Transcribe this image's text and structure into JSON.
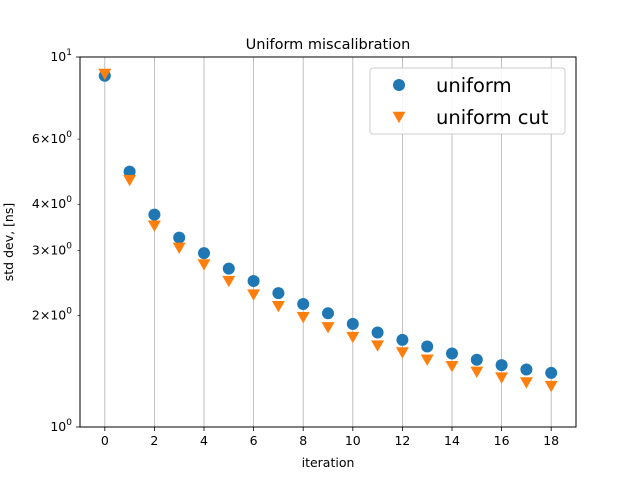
{
  "chart_data": {
    "type": "scatter",
    "title": "Uniform miscalibration",
    "xlabel": "iteration",
    "ylabel": "std dev, [ns]",
    "xlim": [
      -1,
      19
    ],
    "ylim": [
      1,
      10
    ],
    "yscale": "log",
    "grid": "vertical",
    "legend_position": "top-right",
    "x_ticks": [
      "0",
      "2",
      "4",
      "6",
      "8",
      "10",
      "12",
      "14",
      "16",
      "18"
    ],
    "y_major_ticks": [
      {
        "value": 1,
        "base": "10",
        "exp": "0"
      },
      {
        "value": 10,
        "base": "10",
        "exp": "1"
      }
    ],
    "y_minor_ticks": [
      {
        "value": 2,
        "coef": "2",
        "base": "10",
        "exp": "0"
      },
      {
        "value": 3,
        "coef": "3",
        "base": "10",
        "exp": "0"
      },
      {
        "value": 4,
        "coef": "4",
        "base": "10",
        "exp": "0"
      },
      {
        "value": 6,
        "coef": "6",
        "base": "10",
        "exp": "0"
      }
    ],
    "series": [
      {
        "name": "uniform",
        "marker": "circle",
        "color": "#1f77b4",
        "x": [
          0,
          1,
          2,
          3,
          4,
          5,
          6,
          7,
          8,
          9,
          10,
          11,
          12,
          13,
          14,
          15,
          16,
          17,
          18
        ],
        "y": [
          8.9,
          4.9,
          3.75,
          3.25,
          2.95,
          2.68,
          2.48,
          2.3,
          2.15,
          2.03,
          1.9,
          1.8,
          1.72,
          1.65,
          1.58,
          1.52,
          1.47,
          1.43,
          1.4
        ]
      },
      {
        "name": "uniform cut",
        "marker": "triangle-down",
        "color": "#ff7f0e",
        "x": [
          0,
          1,
          2,
          3,
          4,
          5,
          6,
          7,
          8,
          9,
          10,
          11,
          12,
          13,
          14,
          15,
          16,
          17,
          18
        ],
        "y": [
          9.0,
          4.65,
          3.5,
          3.05,
          2.75,
          2.48,
          2.28,
          2.12,
          1.98,
          1.86,
          1.75,
          1.66,
          1.59,
          1.52,
          1.46,
          1.41,
          1.36,
          1.32,
          1.29
        ]
      }
    ]
  }
}
